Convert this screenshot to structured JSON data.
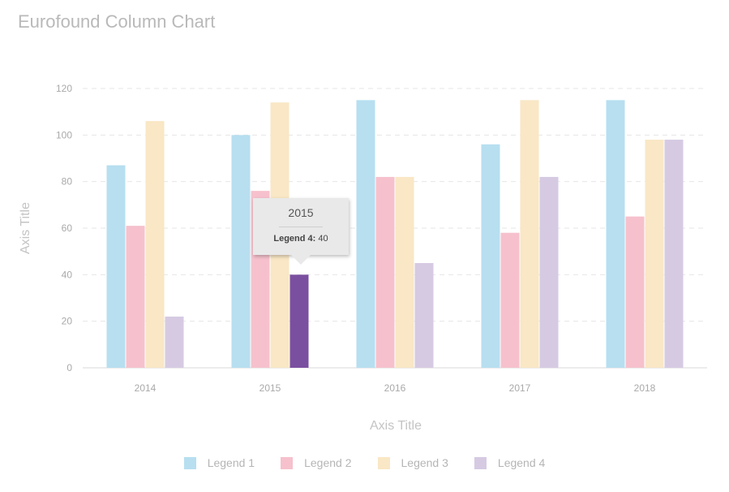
{
  "chart_data": {
    "type": "bar",
    "title": "Eurofound Column Chart",
    "xlabel": "Axis Title",
    "ylabel": "Axis Title",
    "categories": [
      "2014",
      "2015",
      "2016",
      "2017",
      "2018"
    ],
    "ylim": [
      0,
      120
    ],
    "yticks": [
      "0",
      "20",
      "40",
      "60",
      "80",
      "100",
      "120"
    ],
    "grid": true,
    "legend_position": "bottom",
    "series": [
      {
        "name": "Legend 1",
        "color": "#b7dff0",
        "values": [
          87,
          100,
          115,
          96,
          115
        ]
      },
      {
        "name": "Legend 2",
        "color": "#f6c1cc",
        "values": [
          61,
          76,
          82,
          58,
          65
        ]
      },
      {
        "name": "Legend 3",
        "color": "#f9e7c5",
        "values": [
          106,
          114,
          82,
          115,
          98
        ]
      },
      {
        "name": "Legend 4",
        "color": "#d6cae3",
        "values": [
          22,
          40,
          45,
          82,
          98
        ]
      }
    ],
    "highlight": {
      "category": "2015",
      "series": "Legend 4",
      "color": "#7b4fa0"
    },
    "tooltip": {
      "header": "2015",
      "series_label": "Legend 4:",
      "value": "40"
    }
  }
}
